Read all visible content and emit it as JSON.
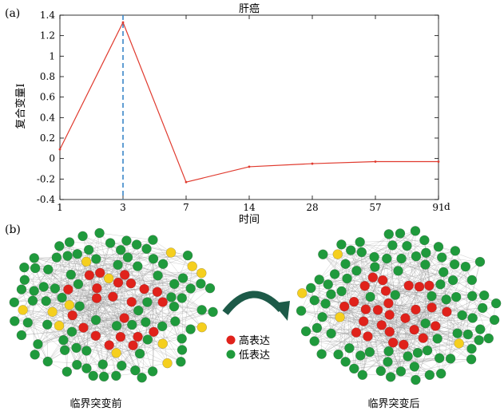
{
  "panels": {
    "a": "(a)",
    "b": "(b)"
  },
  "chart_data": {
    "type": "line",
    "title": "肝癌",
    "xlabel": "时间",
    "ylabel": "复合变量I",
    "x_unit": "d",
    "categories": [
      "1",
      "3",
      "7",
      "14",
      "28",
      "57",
      "91"
    ],
    "series": [
      {
        "values": [
          0.09,
          1.33,
          -0.23,
          -0.08,
          -0.05,
          -0.03,
          -0.03
        ]
      }
    ],
    "ylim": [
      -0.4,
      1.4
    ],
    "yticks": [
      "-0.4",
      "-0.2",
      "0",
      "0.2",
      "0.4",
      "0.6",
      "0.8",
      "1",
      "1.2",
      "1.4"
    ],
    "critical_point": "3",
    "grid": false,
    "colors": {
      "line": "#e03a2e",
      "critical": "#3a86c8"
    }
  },
  "networks": {
    "before_caption": "临界突变前",
    "after_caption": "临界突变后",
    "legend": {
      "high": "高表达",
      "low": "低表达"
    },
    "colors": {
      "high": "#e0221b",
      "low": "#1f9a3c",
      "mid": "#f5cf1e",
      "arrow": "#1d5a48"
    }
  }
}
